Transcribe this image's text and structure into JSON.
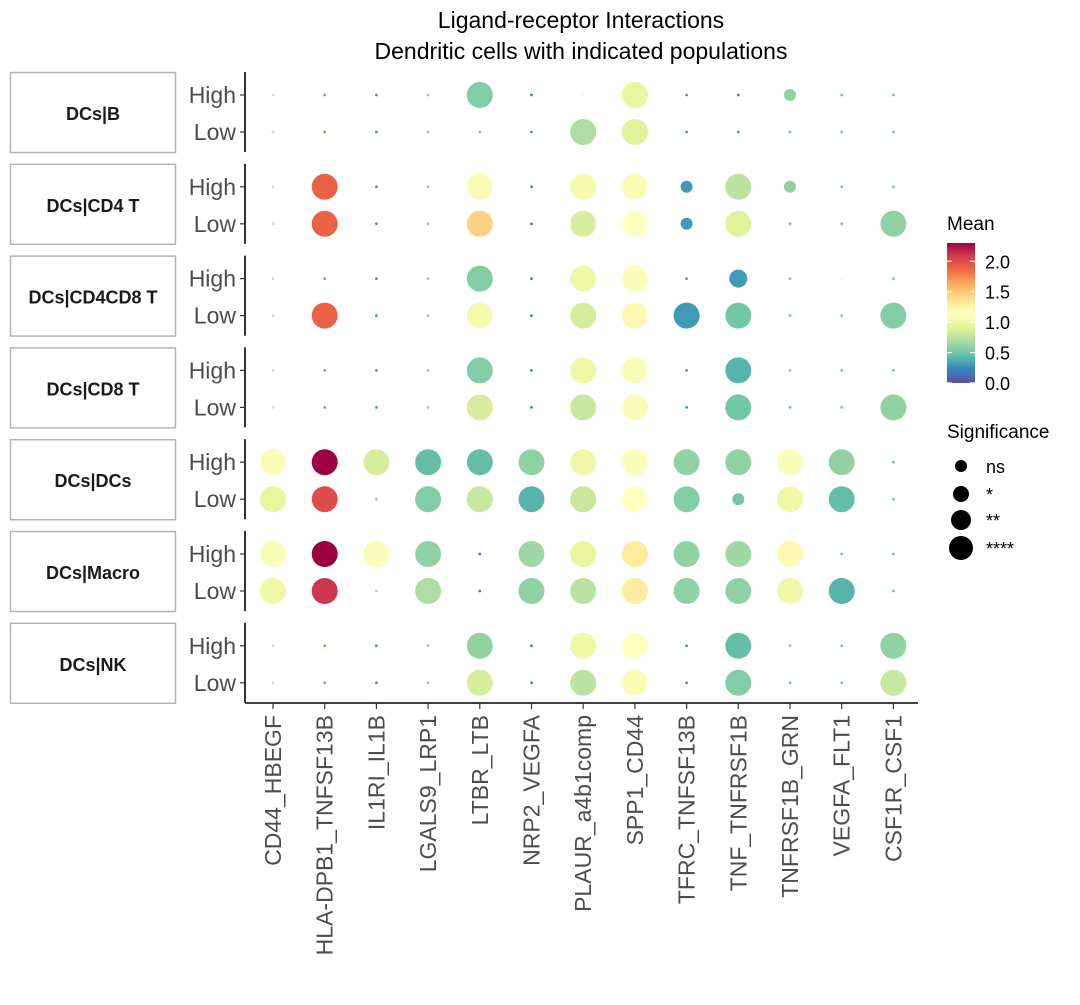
{
  "chart_data": {
    "type": "dot-heatmap",
    "title": "Ligand-receptor Interactions",
    "subtitle": "Dendritic cells with indicated populations",
    "categories": [
      "CD44_HBEGF",
      "HLA-DPB1_TNFSF13B",
      "IL1RI_IL1B",
      "LGALS9_LRP1",
      "LTBR_LTB",
      "NRP2_VEGFA",
      "PLAUR_a4b1comp",
      "SPP1_CD44",
      "TFRC_TNFSF13B",
      "TNF_TNFRSF1B",
      "TNFRSF1B_GRN",
      "VEGFA_FLT1",
      "CSF1R_CSF1"
    ],
    "row_levels": [
      "High",
      "Low"
    ],
    "facets": [
      {
        "name": "DCs|B",
        "rows": [
          {
            "label": "High",
            "mean": [
              0.8,
              1.8,
              0.3,
              0.6,
              0.55,
              0.2,
              1.1,
              0.95,
              0.3,
              0.2,
              0.6,
              0.5,
              0.5
            ],
            "sig": [
              0,
              0,
              0,
              0,
              4,
              0,
              0,
              4,
              0,
              0,
              1,
              0,
              0
            ]
          },
          {
            "label": "Low",
            "mean": [
              0.8,
              1.8,
              0.3,
              0.6,
              0.5,
              0.3,
              0.7,
              0.9,
              0.3,
              0.3,
              0.5,
              0.5,
              0.5
            ],
            "sig": [
              0,
              0,
              0,
              0,
              0,
              0,
              4,
              4,
              0,
              0,
              0,
              0,
              0
            ]
          }
        ]
      },
      {
        "name": "DCs|CD4 T",
        "rows": [
          {
            "label": "High",
            "mean": [
              0.8,
              1.9,
              0.3,
              0.6,
              1.1,
              0.2,
              1.05,
              1.1,
              0.3,
              0.75,
              0.6,
              0.5,
              0.5
            ],
            "sig": [
              0,
              4,
              0,
              0,
              4,
              0,
              4,
              4,
              1,
              4,
              1,
              0,
              0
            ]
          },
          {
            "label": "Low",
            "mean": [
              0.8,
              1.9,
              0.3,
              0.6,
              1.45,
              0.2,
              0.85,
              1.15,
              0.3,
              0.9,
              0.5,
              0.5,
              0.6
            ],
            "sig": [
              0,
              4,
              0,
              0,
              4,
              0,
              4,
              4,
              1,
              4,
              0,
              0,
              4
            ]
          }
        ]
      },
      {
        "name": "DCs|CD4CD8 T",
        "rows": [
          {
            "label": "High",
            "mean": [
              0.8,
              1.8,
              0.3,
              0.6,
              0.55,
              0.2,
              1.0,
              1.1,
              0.3,
              0.3,
              0.6,
              1.2,
              0.5
            ],
            "sig": [
              0,
              0,
              0,
              0,
              4,
              0,
              4,
              4,
              0,
              2,
              0,
              0,
              0
            ]
          },
          {
            "label": "Low",
            "mean": [
              0.8,
              1.9,
              0.3,
              0.6,
              1.05,
              0.2,
              0.85,
              1.2,
              0.3,
              0.5,
              0.5,
              0.5,
              0.55
            ],
            "sig": [
              0,
              4,
              0,
              0,
              4,
              0,
              4,
              4,
              4,
              4,
              0,
              0,
              4
            ]
          }
        ]
      },
      {
        "name": "DCs|CD8 T",
        "rows": [
          {
            "label": "High",
            "mean": [
              0.8,
              1.8,
              0.3,
              0.6,
              0.55,
              0.2,
              1.0,
              1.1,
              0.3,
              0.4,
              0.6,
              0.5,
              0.5
            ],
            "sig": [
              0,
              0,
              0,
              0,
              4,
              0,
              4,
              4,
              0,
              4,
              0,
              0,
              0
            ]
          },
          {
            "label": "Low",
            "mean": [
              0.8,
              1.8,
              0.3,
              0.6,
              0.85,
              0.2,
              0.8,
              1.1,
              0.3,
              0.5,
              0.5,
              0.5,
              0.6
            ],
            "sig": [
              0,
              0,
              0,
              0,
              4,
              0,
              4,
              4,
              0,
              4,
              0,
              0,
              4
            ]
          }
        ]
      },
      {
        "name": "DCs|DCs",
        "rows": [
          {
            "label": "High",
            "mean": [
              1.1,
              2.3,
              0.85,
              0.45,
              0.45,
              0.6,
              1.0,
              1.1,
              0.6,
              0.6,
              1.1,
              0.6,
              0.5
            ],
            "sig": [
              4,
              4,
              4,
              4,
              4,
              4,
              4,
              4,
              4,
              4,
              4,
              4,
              0
            ]
          },
          {
            "label": "Low",
            "mean": [
              0.95,
              2.0,
              0.6,
              0.55,
              0.8,
              0.4,
              0.8,
              1.15,
              0.55,
              0.5,
              1.0,
              0.45,
              0.5
            ],
            "sig": [
              4,
              4,
              0,
              4,
              4,
              4,
              4,
              4,
              4,
              1,
              4,
              4,
              0
            ]
          }
        ]
      },
      {
        "name": "DCs|Macro",
        "rows": [
          {
            "label": "High",
            "mean": [
              1.1,
              2.3,
              1.1,
              0.6,
              0.2,
              0.65,
              0.95,
              1.3,
              0.6,
              0.65,
              1.2,
              0.5,
              0.5
            ],
            "sig": [
              4,
              4,
              4,
              4,
              0,
              4,
              4,
              4,
              4,
              4,
              4,
              0,
              0
            ]
          },
          {
            "label": "Low",
            "mean": [
              1.0,
              2.1,
              0.7,
              0.7,
              0.2,
              0.6,
              0.75,
              1.3,
              0.6,
              0.6,
              1.0,
              0.4,
              0.5
            ],
            "sig": [
              4,
              4,
              0,
              4,
              0,
              4,
              4,
              4,
              4,
              4,
              4,
              4,
              0
            ]
          }
        ]
      },
      {
        "name": "DCs|NK",
        "rows": [
          {
            "label": "High",
            "mean": [
              0.8,
              1.8,
              0.3,
              0.6,
              0.6,
              0.2,
              1.0,
              1.15,
              0.3,
              0.45,
              0.6,
              0.5,
              0.6
            ],
            "sig": [
              0,
              0,
              0,
              0,
              4,
              0,
              4,
              4,
              0,
              4,
              0,
              0,
              4
            ]
          },
          {
            "label": "Low",
            "mean": [
              0.8,
              1.8,
              0.3,
              0.6,
              0.85,
              0.2,
              0.75,
              1.1,
              0.3,
              0.55,
              0.5,
              0.5,
              0.8
            ],
            "sig": [
              0,
              0,
              0,
              0,
              4,
              0,
              4,
              4,
              0,
              4,
              0,
              0,
              4
            ]
          }
        ]
      }
    ],
    "color_scale": {
      "title": "Mean",
      "range": [
        0,
        2.3
      ],
      "ticks": [
        "0.0",
        "0.5",
        "1.0",
        "1.5",
        "2.0"
      ],
      "tick_values": [
        0,
        0.5,
        1.0,
        1.5,
        2.0
      ],
      "palette": "Spectral (reversed)",
      "stops": [
        "#5E4FA2",
        "#3288BD",
        "#66C2A5",
        "#ABDDA4",
        "#E6F598",
        "#FFFFBF",
        "#FEE08B",
        "#FDAE61",
        "#F46D43",
        "#D53E4F",
        "#9E0142"
      ]
    },
    "size_legend": {
      "title": "Significance",
      "levels": [
        "ns",
        "*",
        "**",
        "****"
      ]
    },
    "legend_position": "right",
    "grid": false
  }
}
